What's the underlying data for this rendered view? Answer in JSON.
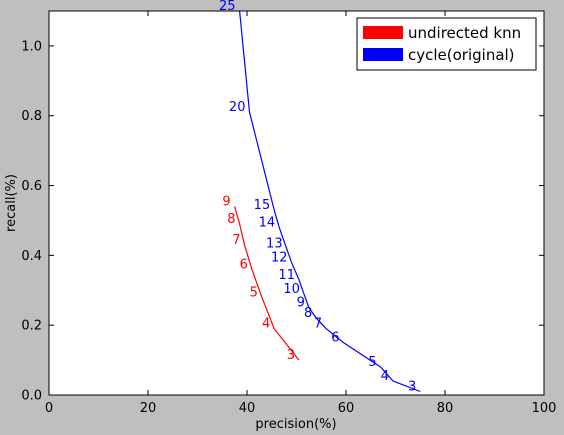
{
  "chart_data": {
    "type": "line",
    "title": "",
    "xlabel": "precision(%)",
    "ylabel": "recall(%)",
    "xlim": [
      0,
      100
    ],
    "ylim": [
      0,
      1.1
    ],
    "x_ticks": [
      "0",
      "20",
      "40",
      "60",
      "80",
      "100"
    ],
    "y_ticks": [
      "0.0",
      "0.2",
      "0.4",
      "0.6",
      "0.8",
      "1.0"
    ],
    "grid": false,
    "legend_position": "top-right",
    "series": [
      {
        "name": "undirected knn",
        "color": "#ff0000",
        "points": [
          {
            "label": "3",
            "x": 50.5,
            "y": 0.1
          },
          {
            "label": "4",
            "x": 45.5,
            "y": 0.19
          },
          {
            "label": "5",
            "x": 43.0,
            "y": 0.28
          },
          {
            "label": "6",
            "x": 41.0,
            "y": 0.36
          },
          {
            "label": "7",
            "x": 39.5,
            "y": 0.43
          },
          {
            "label": "8",
            "x": 38.5,
            "y": 0.49
          },
          {
            "label": "9",
            "x": 37.5,
            "y": 0.54
          }
        ]
      },
      {
        "name": "cycle(original)",
        "color": "#0000ff",
        "points": [
          {
            "label": "3",
            "x": 75.0,
            "y": 0.01
          },
          {
            "label": "4",
            "x": 69.5,
            "y": 0.04
          },
          {
            "label": "5",
            "x": 67.0,
            "y": 0.08
          },
          {
            "label": "6",
            "x": 59.5,
            "y": 0.15
          },
          {
            "label": "7",
            "x": 56.0,
            "y": 0.19
          },
          {
            "label": "8",
            "x": 54.0,
            "y": 0.22
          },
          {
            "label": "9",
            "x": 52.5,
            "y": 0.25
          },
          {
            "label": "10",
            "x": 51.5,
            "y": 0.29
          },
          {
            "label": "11",
            "x": 50.5,
            "y": 0.33
          },
          {
            "label": "12",
            "x": 49.0,
            "y": 0.38
          },
          {
            "label": "13",
            "x": 48.0,
            "y": 0.42
          },
          {
            "label": "14",
            "x": 46.5,
            "y": 0.48
          },
          {
            "label": "15",
            "x": 45.5,
            "y": 0.53
          },
          {
            "label": "20",
            "x": 40.5,
            "y": 0.81
          },
          {
            "label": "25",
            "x": 38.5,
            "y": 1.1
          }
        ]
      }
    ]
  }
}
